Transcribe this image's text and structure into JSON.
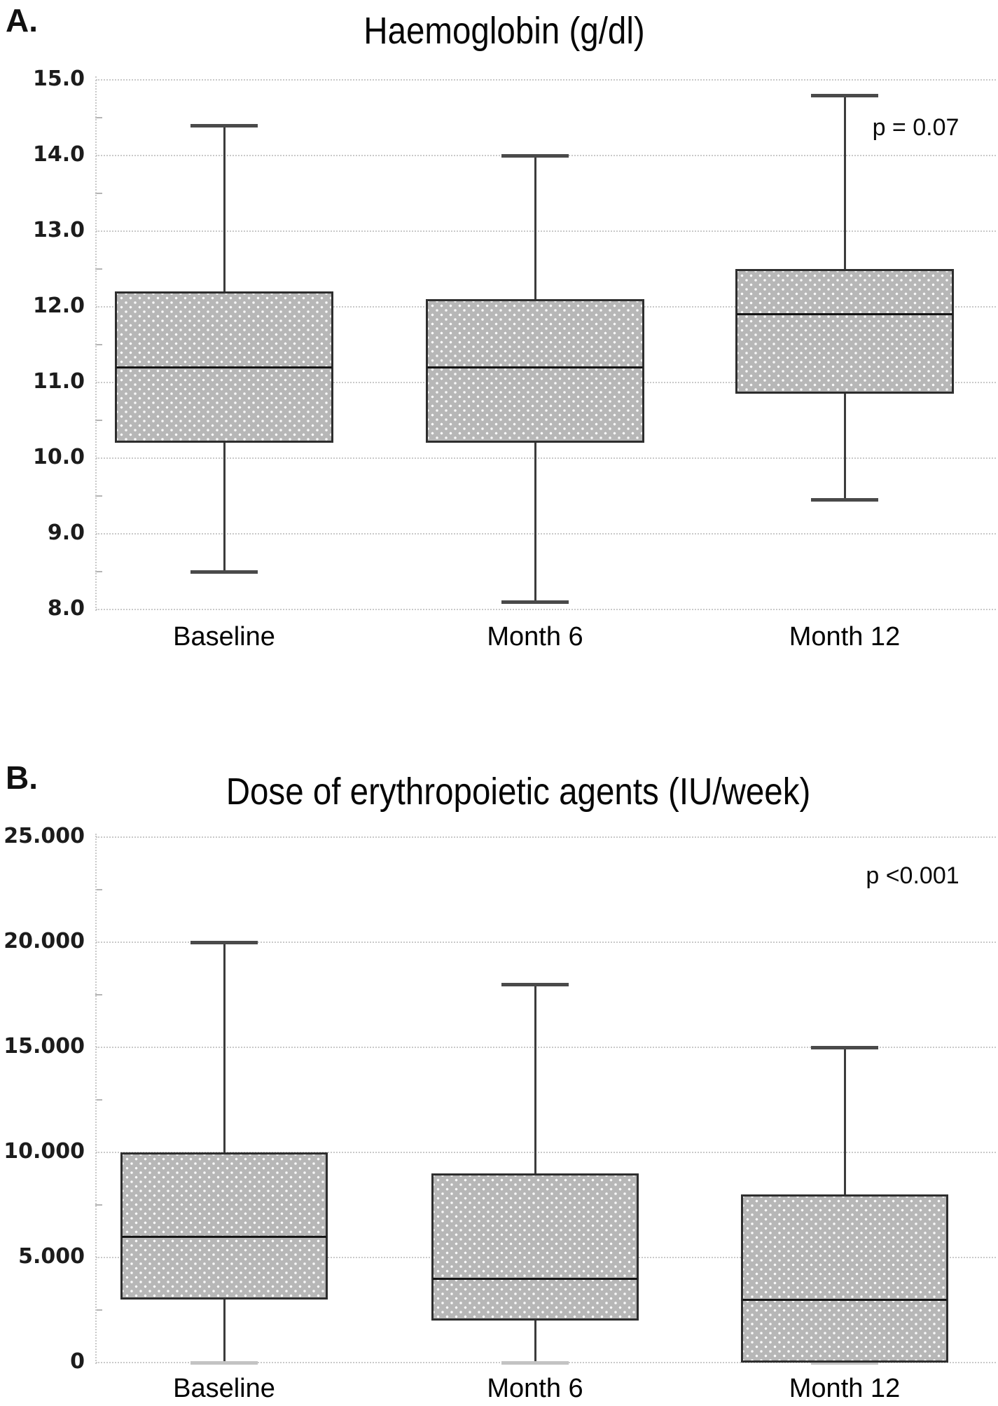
{
  "chart_data": [
    {
      "type": "box",
      "panel_label": "A.",
      "title": "Haemoglobin (g/dl)",
      "annotation": "p = 0.07",
      "categories": [
        "Baseline",
        "Month 6",
        "Month 12"
      ],
      "series": [
        {
          "name": "Baseline",
          "min": 8.5,
          "q1": 10.2,
          "median": 11.2,
          "q3": 12.2,
          "max": 14.4,
          "min_cap_muted": false
        },
        {
          "name": "Month 6",
          "min": 8.1,
          "q1": 10.2,
          "median": 11.2,
          "q3": 12.1,
          "max": 14.0,
          "min_cap_muted": false
        },
        {
          "name": "Month 12",
          "min": 9.45,
          "q1": 10.85,
          "median": 11.9,
          "q3": 12.5,
          "max": 14.8,
          "min_cap_muted": false
        }
      ],
      "ylim": [
        8.0,
        15.0
      ],
      "y_tick_values": [
        15,
        14,
        13,
        12,
        11,
        10,
        9,
        8
      ],
      "y_tick_labels": [
        "15.0",
        "14.0",
        "13.0",
        "12.0",
        "11.0",
        "10.0",
        "9.0",
        "8.0"
      ],
      "grid": "horizontal-dotted",
      "legend": "none"
    },
    {
      "type": "box",
      "panel_label": "B.",
      "title": "Dose of erythropoietic agents (IU/week)",
      "annotation": "p <0.001",
      "categories": [
        "Baseline",
        "Month 6",
        "Month 12"
      ],
      "series": [
        {
          "name": "Baseline",
          "min": 0,
          "q1": 3000,
          "median": 6000,
          "q3": 10000,
          "max": 20000,
          "min_cap_muted": true
        },
        {
          "name": "Month 6",
          "min": 0,
          "q1": 2000,
          "median": 4000,
          "q3": 9000,
          "max": 18000,
          "min_cap_muted": true
        },
        {
          "name": "Month 12",
          "min": 0,
          "q1": 0,
          "median": 3000,
          "q3": 8000,
          "max": 15000,
          "min_cap_muted": true
        }
      ],
      "ylim": [
        0,
        25000
      ],
      "y_tick_values": [
        25000,
        20000,
        15000,
        10000,
        5000,
        0
      ],
      "y_tick_labels": [
        "25.000",
        "20.000",
        "15.000",
        "10.000",
        "5.000",
        "0"
      ],
      "grid": "horizontal-dotted",
      "legend": "none"
    }
  ],
  "colors": {
    "box_fill": "#b7b7b7",
    "box_border": "#2e2e2e",
    "median": "#151515",
    "whisker": "#3c3c3c",
    "gridline": "#c9c9c9",
    "background": "#ffffff",
    "text": "#0a0a0a"
  }
}
